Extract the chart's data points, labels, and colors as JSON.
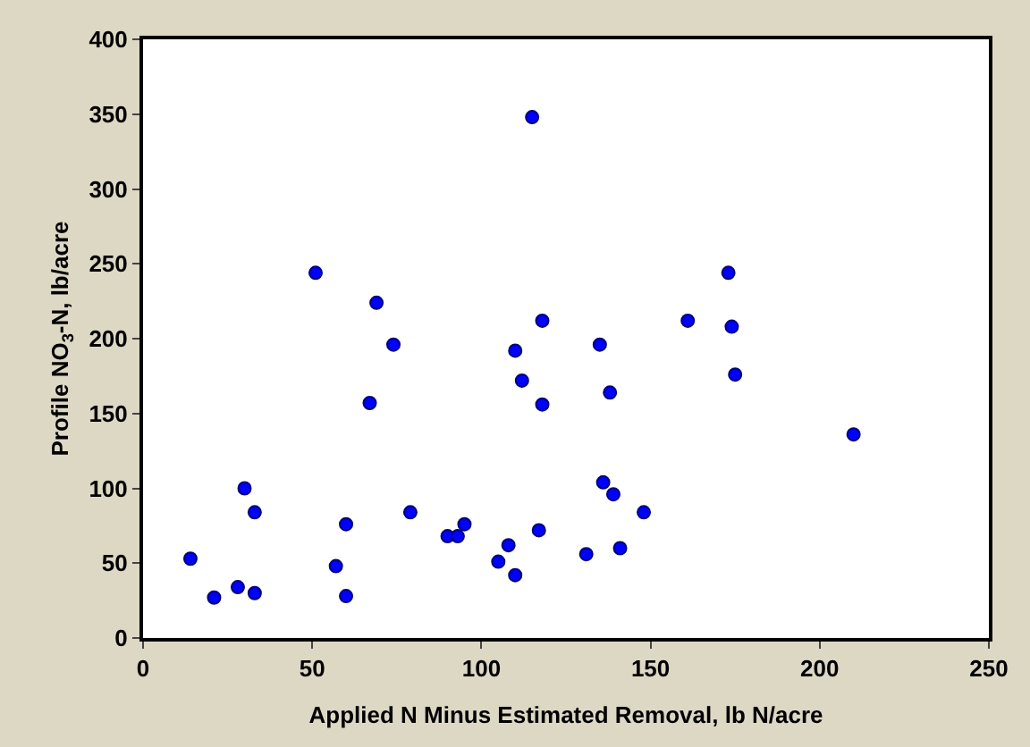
{
  "chart_data": {
    "type": "scatter",
    "xlabel": "Applied N Minus Estimated Removal, lb N/acre",
    "ylabel": "Profile NO$_{3}$-N, lb/acre",
    "x": [
      14,
      21,
      28,
      30,
      33,
      33,
      51,
      57,
      60,
      60,
      67,
      69,
      74,
      79,
      90,
      93,
      95,
      105,
      108,
      110,
      110,
      112,
      115,
      117,
      118,
      118,
      131,
      135,
      136,
      138,
      139,
      141,
      148,
      161,
      173,
      174,
      175,
      210
    ],
    "series": [
      {
        "color": "#0000ff",
        "values": [
          53,
          27,
          34,
          100,
          84,
          30,
          244,
          48,
          76,
          28,
          157,
          224,
          196,
          84,
          68,
          68,
          76,
          51,
          62,
          42,
          192,
          172,
          348,
          72,
          212,
          156,
          56,
          196,
          104,
          164,
          96,
          60,
          84,
          212,
          244,
          208,
          176,
          136
        ]
      }
    ],
    "xlim": [
      0,
      250
    ],
    "xticks": [
      0,
      50,
      100,
      150,
      200,
      250
    ],
    "ylim": [
      0,
      400
    ],
    "yticks": [
      0,
      50,
      100,
      150,
      200,
      250,
      300,
      350,
      400
    ],
    "legend": false,
    "marker": "circle"
  }
}
